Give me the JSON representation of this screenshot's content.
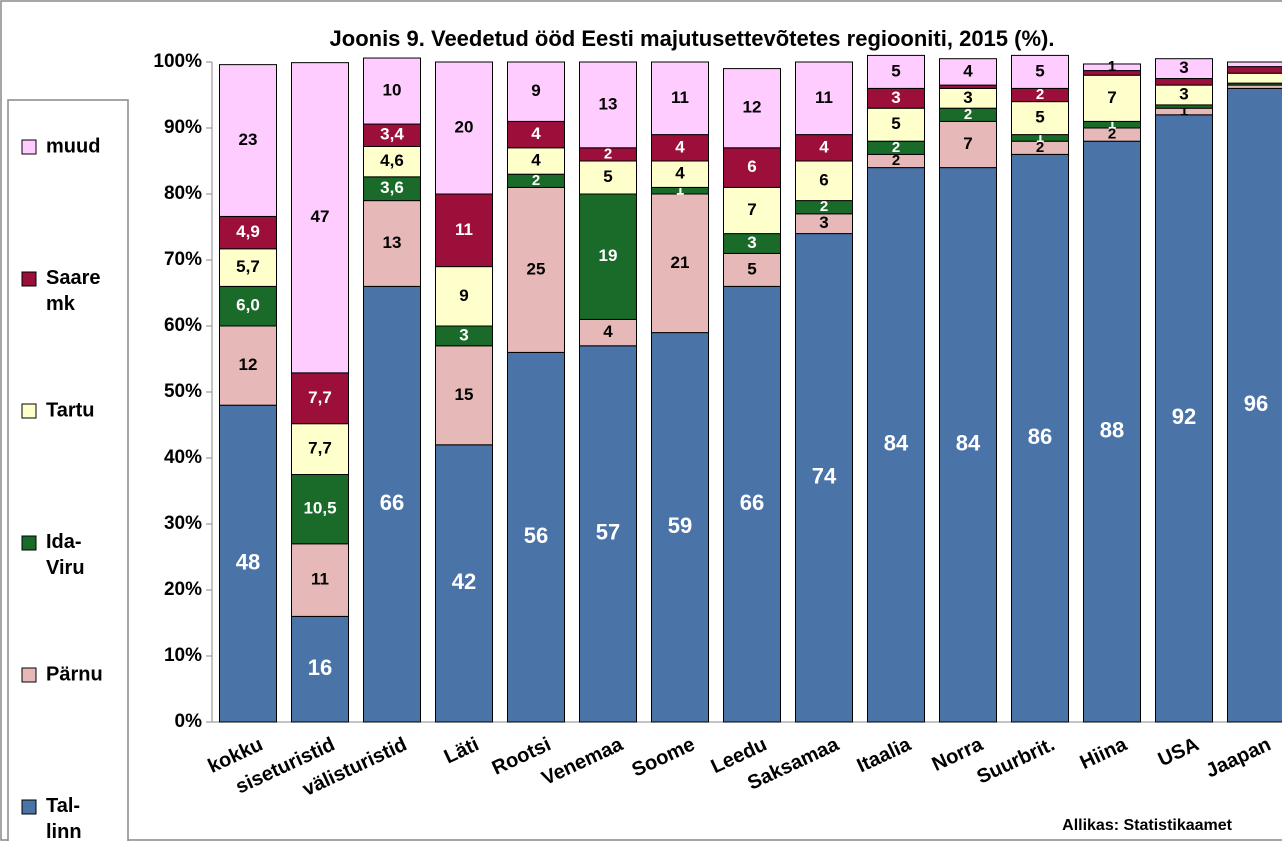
{
  "chart_data": {
    "type": "stacked_bar",
    "title": "Joonis 9. Veedetud ööd Eesti majutusettevõtetes regiooniti, 2015 (%).",
    "source": "Allikas: Statistikaamet",
    "categories": [
      "kokku",
      "siseturistid",
      "välisturistid",
      "Läti",
      "Rootsi",
      "Venemaa",
      "Soome",
      "Leedu",
      "Saksamaa",
      "Itaalia",
      "Norra",
      "Suurbrit.",
      "Hiina",
      "USA",
      "Jaapan"
    ],
    "ylim": [
      0,
      100
    ],
    "yticks": [
      {
        "value": 0,
        "label": "0%"
      },
      {
        "value": 10,
        "label": "10%"
      },
      {
        "value": 20,
        "label": "20%"
      },
      {
        "value": 30,
        "label": "30%"
      },
      {
        "value": 40,
        "label": "40%"
      },
      {
        "value": 50,
        "label": "50%"
      },
      {
        "value": 60,
        "label": "60%"
      },
      {
        "value": 70,
        "label": "70%"
      },
      {
        "value": 80,
        "label": "80%"
      },
      {
        "value": 90,
        "label": "90%"
      },
      {
        "value": 100,
        "label": "100%"
      }
    ],
    "legend": "left",
    "series": [
      {
        "name": "Tal-linn",
        "color": "#4a73a8",
        "label_color": "#ffffff",
        "values": [
          48,
          16,
          66,
          42,
          56,
          57,
          59,
          66,
          74,
          84,
          84,
          86,
          88,
          92,
          96
        ],
        "value_labels": [
          "48",
          "16",
          "66",
          "42",
          "56",
          "57",
          "59",
          "66",
          "74",
          "84",
          "84",
          "86",
          "88",
          "92",
          "96"
        ]
      },
      {
        "name": "Pärnu",
        "color": "#e6b9b8",
        "label_color": "#000000",
        "values": [
          12,
          11,
          13,
          15,
          25,
          4,
          21,
          5,
          3,
          2,
          7,
          2,
          2,
          1,
          0.5
        ],
        "value_labels": [
          "12",
          "11",
          "13",
          "15",
          "25",
          "4",
          "21",
          "5",
          "3",
          "2",
          "7",
          "2",
          "2",
          "1",
          null
        ]
      },
      {
        "name": "Ida-Viru",
        "color": "#1a6b2a",
        "label_color": "#ffffff",
        "values": [
          6.0,
          10.5,
          3.6,
          3,
          2,
          19,
          1,
          3,
          2,
          2,
          2,
          1,
          1,
          0.5,
          0.3
        ],
        "value_labels": [
          "6,0",
          "10,5",
          "3,6",
          "3",
          "2",
          "19",
          "1",
          "3",
          "2",
          "2",
          "2",
          "1",
          "1",
          null,
          null
        ]
      },
      {
        "name": "Tartu",
        "color": "#ffffcc",
        "label_color": "#000000",
        "values": [
          5.7,
          7.7,
          4.6,
          9,
          4,
          5,
          4,
          7,
          6,
          5,
          3,
          5,
          7,
          3,
          1.5
        ],
        "value_labels": [
          "5,7",
          "7,7",
          "4,6",
          "9",
          "4",
          "5",
          "4",
          "7",
          "6",
          "5",
          "3",
          "5",
          "7",
          "3",
          null
        ]
      },
      {
        "name": "Saare mk",
        "color": "#9b0f3a",
        "label_color": "#ffffff",
        "values": [
          4.9,
          7.7,
          3.4,
          11,
          4,
          2,
          4,
          6,
          4,
          3,
          0.5,
          2,
          0.7,
          1,
          1
        ],
        "value_labels": [
          "4,9",
          "7,7",
          "3,4",
          "11",
          "4",
          "2",
          "4",
          "6",
          "4",
          "3",
          null,
          "2",
          null,
          null,
          null
        ]
      },
      {
        "name": "muud",
        "color": "#ffccff",
        "label_color": "#000000",
        "values": [
          23,
          47,
          10,
          20,
          9,
          13,
          11,
          12,
          11,
          5,
          4,
          5,
          1,
          3,
          0.7
        ],
        "value_labels": [
          "23",
          "47",
          "10",
          "20",
          "9",
          "13",
          "11",
          "12",
          "11",
          "5",
          "4",
          "5",
          "1",
          "3",
          null
        ]
      }
    ]
  }
}
